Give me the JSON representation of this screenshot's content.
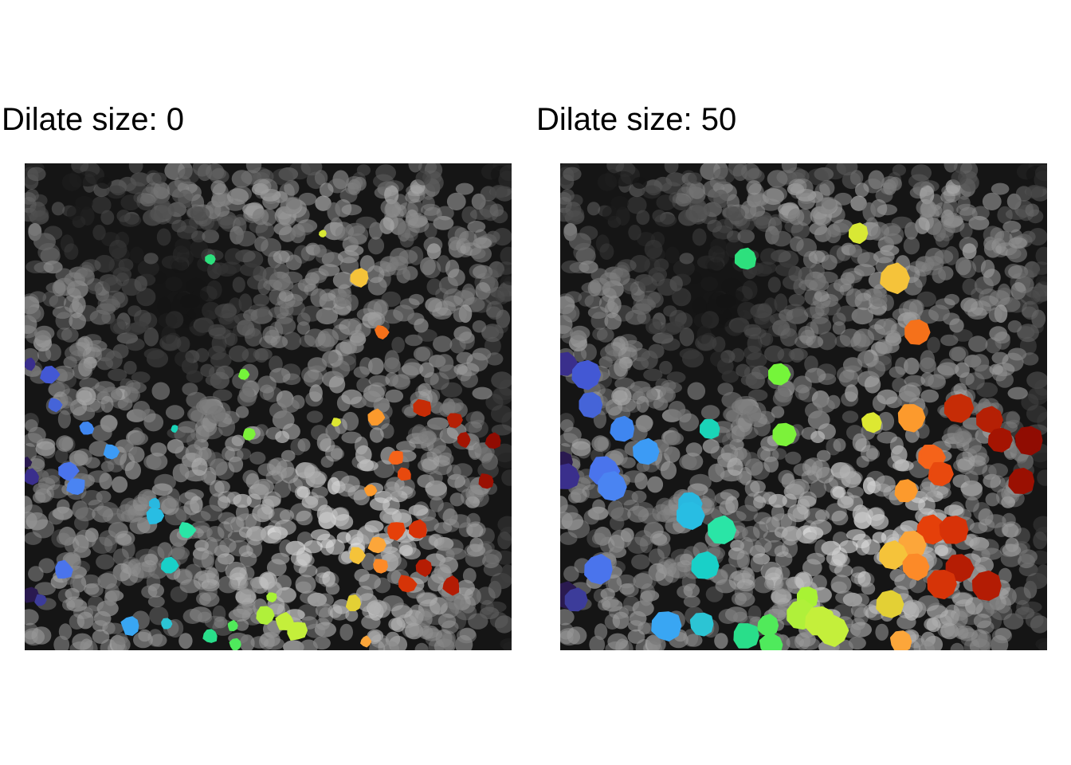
{
  "panels": [
    {
      "title": "Dilate size: 0"
    },
    {
      "title": "Dilate size: 50"
    }
  ],
  "colormap": "turbo",
  "background": "grayscale fluorescence nuclei"
}
